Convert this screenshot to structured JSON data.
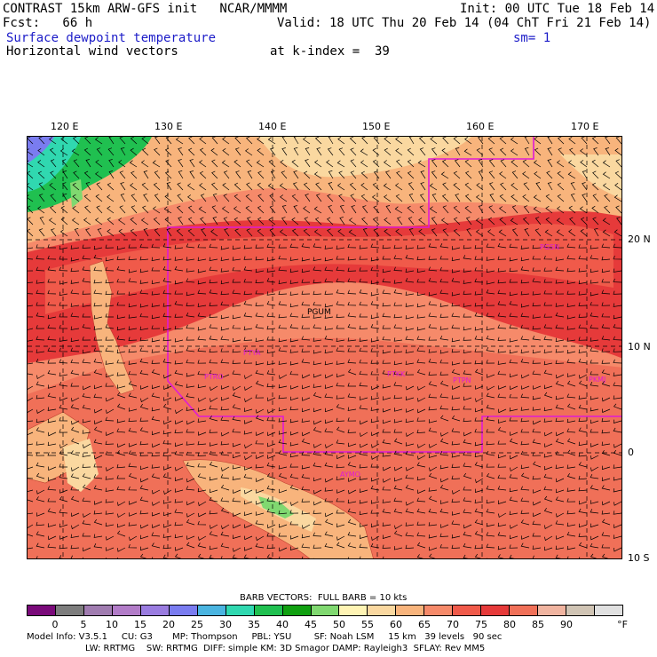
{
  "header": {
    "line1_left": "CONTRAST 15km ARW-GFS init   NCAR/MMMM",
    "line1_right": "Init: 00 UTC Tue 18 Feb 14",
    "line2_left": "Fcst:   66 h",
    "line2_right": "Valid: 18 UTC Thu 20 Feb 14 (04 ChT Fri 21 Feb 14)",
    "line3_left": "Surface dewpoint temperature",
    "line3_right": "sm= 1",
    "line4_left": "Horizontal wind vectors",
    "line4_mid": "at k-index =  39"
  },
  "axes": {
    "lon_labels": [
      "120 E",
      "130 E",
      "140 E",
      "150 E",
      "160 E",
      "170 E"
    ],
    "lat_labels": [
      "20 N",
      "10 N",
      "0",
      "10 S"
    ]
  },
  "stations": [
    {
      "id": "PGUM",
      "label": "PGUM"
    },
    {
      "id": "PGSN",
      "label": "PGSN"
    },
    {
      "id": "PTYA",
      "label": "PTYA"
    },
    {
      "id": "PTRO",
      "label": "PTRO"
    },
    {
      "id": "PTKK",
      "label": "PTKK"
    },
    {
      "id": "PTPN",
      "label": "PTPN"
    },
    {
      "id": "PKMJ",
      "label": "PKMJ"
    },
    {
      "id": "AYMO",
      "label": "AYMO"
    }
  ],
  "legend": {
    "barb_title": "BARB VECTORS:  FULL BARB = 10 kts",
    "colorbar_labels": [
      "0",
      "5",
      "10",
      "15",
      "20",
      "25",
      "30",
      "35",
      "40",
      "45",
      "50",
      "55",
      "60",
      "65",
      "70",
      "75",
      "80",
      "85",
      "90"
    ],
    "unit": "°F",
    "colors": [
      "#7a0a7a",
      "#7d7d7d",
      "#a07cb0",
      "#b27cc8",
      "#9a7ce0",
      "#7a7cf0",
      "#4ab4e0",
      "#30d8b0",
      "#20c050",
      "#10a010",
      "#80d870",
      "#fff4b4",
      "#fad8a0",
      "#f8b47c",
      "#f68a6a",
      "#f05a4a",
      "#e63a3a",
      "#f07058",
      "#f0b4a0",
      "#d0c4b4",
      "#e0e0e0"
    ]
  },
  "footer": {
    "line1": "Model Info: V3.5.1     CU: G3       MP: Thompson     PBL: YSU        SF: Noah LSM     15 km   39 levels   90 sec",
    "line2": "LW: RRTMG    SW: RRTMG  DIFF: simple KM: 3D Smagor DAMP: Rayleigh3  SFLAY: Rev MM5"
  }
}
